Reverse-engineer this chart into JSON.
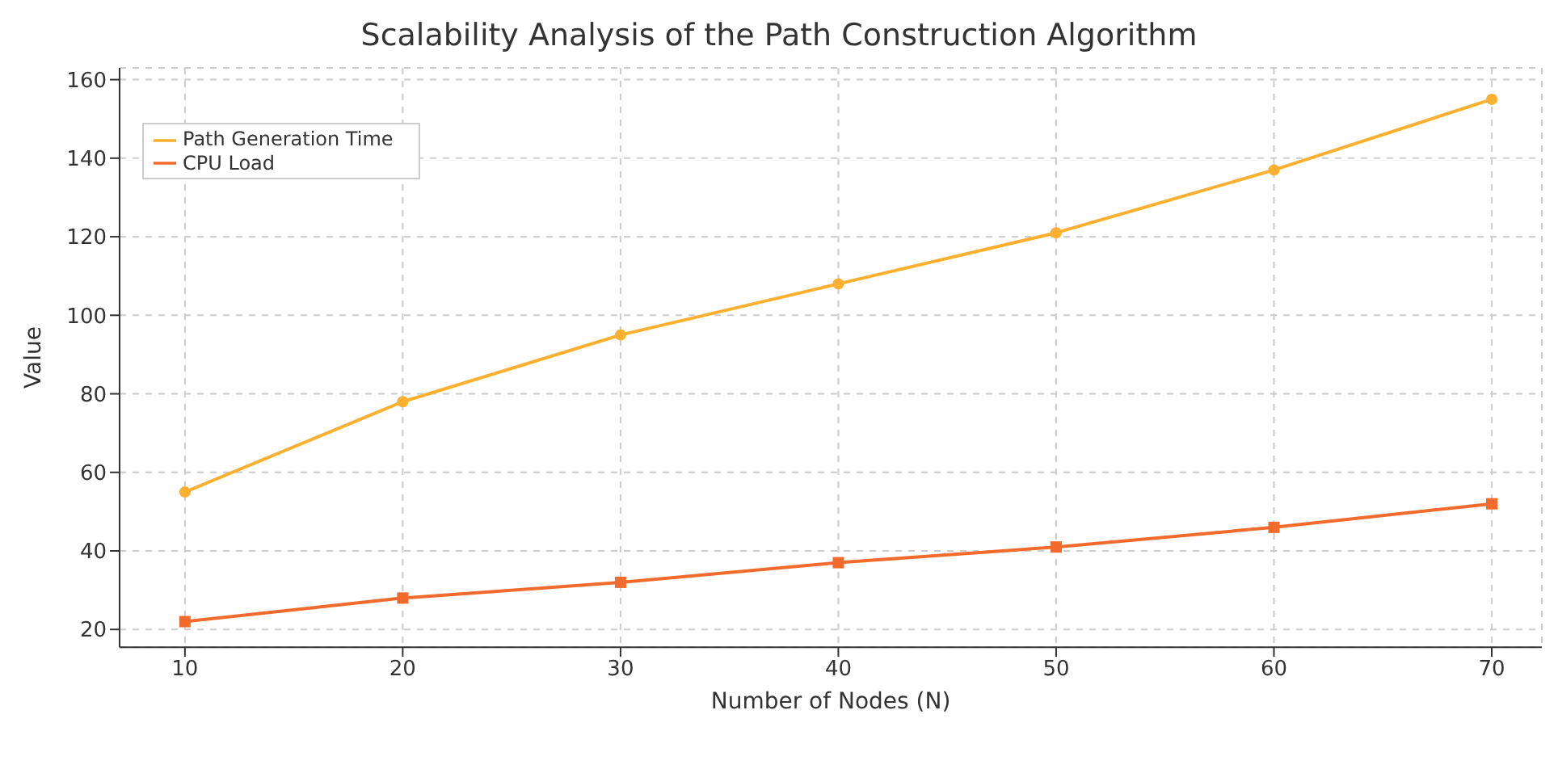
{
  "chart_data": {
    "type": "line",
    "title": "Scalability Analysis of the Path Construction Algorithm",
    "xlabel": "Number of Nodes (N)",
    "ylabel": "Value",
    "x": [
      10,
      20,
      30,
      40,
      50,
      60,
      70
    ],
    "series": [
      {
        "name": "Path Generation Time",
        "color": "#fdb02f",
        "values": [
          55,
          78,
          95,
          108,
          121,
          137,
          155
        ],
        "marker": "circle"
      },
      {
        "name": "CPU Load",
        "color": "#f26b2c",
        "values": [
          22,
          28,
          32,
          37,
          41,
          46,
          52
        ],
        "marker": "square"
      }
    ],
    "xlim": [
      7,
      72.3
    ],
    "xticks": [
      10,
      20,
      30,
      40,
      50,
      60,
      70
    ],
    "ylim": [
      15.5,
      163
    ],
    "yticks": [
      20,
      40,
      60,
      80,
      100,
      120,
      140,
      160
    ],
    "grid": true,
    "legend": "top left",
    "line_style": "solid"
  }
}
